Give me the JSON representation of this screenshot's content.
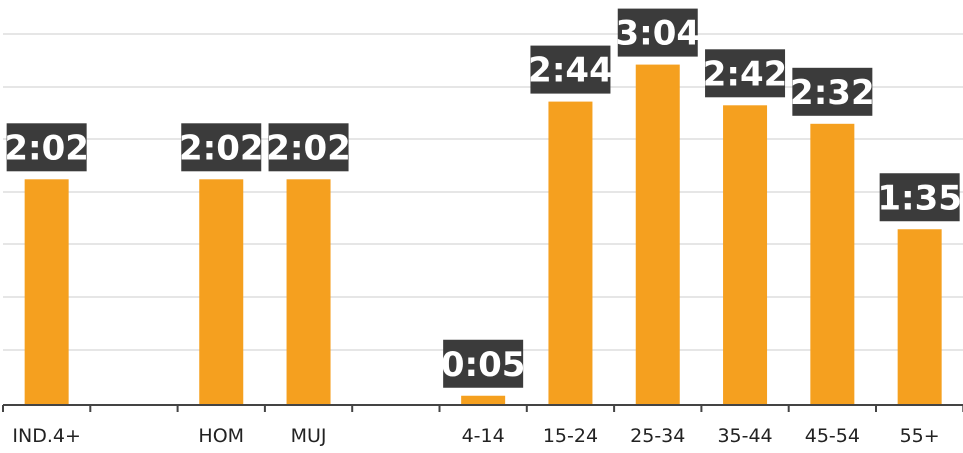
{
  "chart_data": {
    "type": "bar",
    "categories": [
      "IND.4+",
      "",
      "HOM",
      "MUJ",
      "",
      "4-14",
      "15-24",
      "25-34",
      "35-44",
      "45-54",
      "55+"
    ],
    "values": [
      122,
      null,
      122,
      122,
      null,
      5,
      164,
      184,
      162,
      152,
      95
    ],
    "value_labels": [
      "2:02",
      "",
      "2:02",
      "2:02",
      "",
      "0:05",
      "2:44",
      "3:04",
      "2:42",
      "2:32",
      "1:35"
    ],
    "title": "",
    "xlabel": "",
    "ylabel": "",
    "ylim": [
      0,
      210
    ],
    "grid": true,
    "legend": "none",
    "bar_color": "#f5a01f",
    "label_box_color": "#3b3b3b",
    "label_text_color": "#ffffff",
    "grid_color": "#dddddd",
    "axis_color": "#444444"
  }
}
